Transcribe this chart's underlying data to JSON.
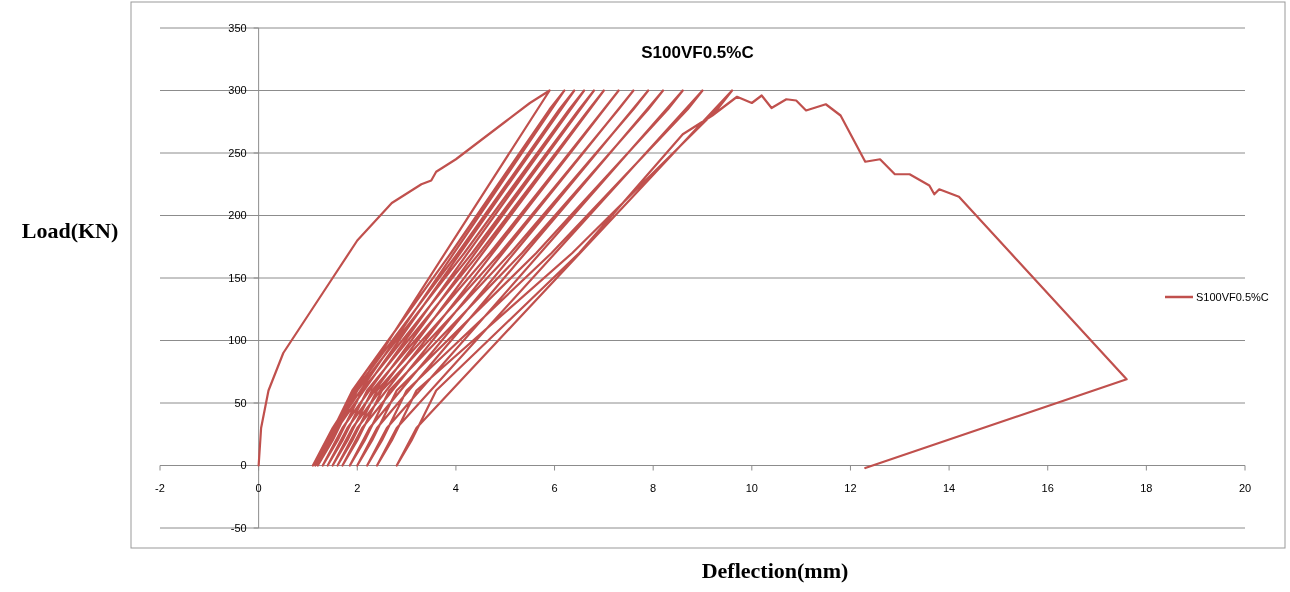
{
  "chart_data": {
    "type": "line",
    "title": "S100VF0.5%C",
    "xlabel": "Deflection(mm)",
    "ylabel": "Load(KN)",
    "xlim": [
      -2,
      20
    ],
    "ylim": [
      -50,
      350
    ],
    "xticks": [
      -2,
      0,
      2,
      4,
      6,
      8,
      10,
      12,
      14,
      16,
      18,
      20
    ],
    "yticks": [
      -50,
      0,
      50,
      100,
      150,
      200,
      250,
      300,
      350
    ],
    "grid": "y",
    "legend": "right",
    "marker": "none",
    "line_style": "solid",
    "series": [
      {
        "name": "S100VF0.5%C",
        "color": "#c0504d",
        "x": [
          0,
          0.05,
          0.2,
          0.5,
          1,
          1.5,
          2,
          2.7,
          3.3,
          3.5,
          3.6,
          4,
          4.5,
          5,
          5.5,
          5.9,
          1.5,
          1.1,
          1.4,
          1.9,
          3.9,
          5.9,
          6.2,
          1.55,
          1.15,
          1.45,
          1.95,
          4.04,
          6.1,
          6.4,
          1.6,
          1.2,
          1.5,
          2.0,
          4.17,
          6.3,
          6.6,
          1.7,
          1.3,
          1.6,
          2.1,
          4.33,
          6.5,
          6.8,
          1.8,
          1.4,
          1.7,
          2.2,
          4.48,
          6.7,
          7.0,
          1.9,
          1.5,
          1.8,
          2.3,
          4.69,
          7.0,
          7.3,
          2.0,
          1.6,
          1.9,
          2.4,
          4.9,
          7.3,
          7.6,
          2.1,
          1.7,
          2.0,
          2.5,
          5.11,
          7.6,
          7.9,
          2.25,
          1.85,
          2.15,
          2.65,
          5.34,
          7.9,
          8.2,
          2.4,
          2.0,
          2.3,
          2.8,
          5.63,
          8.3,
          8.6,
          2.6,
          2.2,
          2.5,
          3.0,
          5.94,
          8.7,
          9.0,
          2.8,
          2.4,
          2.7,
          3.2,
          6.36,
          9.3,
          9.6,
          3.2,
          2.8,
          3.1,
          3.6,
          6.5,
          8.6,
          9.2,
          9.7,
          10,
          10.2,
          10.4,
          10.7,
          10.9,
          11.1,
          11.5,
          11.8,
          12.3,
          12.6,
          12.9,
          13.2,
          13.6,
          13.7,
          13.8,
          14.2,
          17.6,
          12.3
        ],
        "values": [
          0,
          30,
          60,
          90,
          120,
          150,
          180,
          210,
          225,
          228,
          235,
          245,
          260,
          275,
          290,
          300,
          30,
          0,
          20,
          60,
          170,
          285,
          300,
          30,
          0,
          20,
          60,
          170,
          285,
          300,
          30,
          0,
          20,
          60,
          170,
          285,
          300,
          30,
          0,
          20,
          60,
          170,
          285,
          300,
          30,
          0,
          20,
          60,
          170,
          285,
          300,
          30,
          0,
          20,
          60,
          170,
          285,
          300,
          30,
          0,
          20,
          60,
          170,
          285,
          300,
          30,
          0,
          20,
          60,
          170,
          285,
          300,
          30,
          0,
          20,
          60,
          170,
          285,
          300,
          30,
          0,
          20,
          60,
          170,
          285,
          300,
          30,
          0,
          20,
          60,
          170,
          285,
          300,
          30,
          0,
          20,
          60,
          170,
          285,
          300,
          30,
          0,
          20,
          60,
          170,
          265,
          280,
          295,
          290,
          296,
          286,
          293,
          292,
          284,
          289,
          280,
          243,
          245,
          233,
          233,
          224,
          217,
          221,
          215,
          69,
          -2
        ]
      }
    ]
  }
}
